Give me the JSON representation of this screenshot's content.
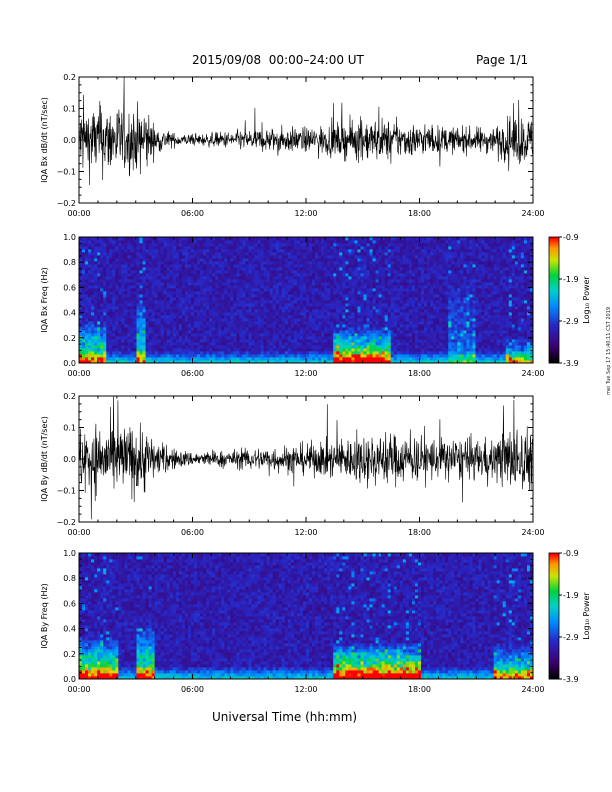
{
  "header": {
    "title": "2015/09/08  00:00–24:00 UT",
    "page_label": "Page 1/1"
  },
  "x_axis_title": "Universal Time (hh:mm)",
  "side_stamp": "mei Tue Sep 17 15:40:11 CST 2019",
  "colorbar": {
    "label": "Log₁₀ Power",
    "ticks": [
      "-0.9",
      "-1.9",
      "-2.9",
      "-3.9"
    ]
  },
  "chart_data": [
    {
      "type": "line",
      "title": "",
      "ylabel": "IQA Bx dB/dt (nT/sec)",
      "xlabel": "",
      "xlim": [
        "00:00",
        "24:00"
      ],
      "ylim": [
        -0.2,
        0.2
      ],
      "x_ticks": [
        "00:00",
        "06:00",
        "12:00",
        "18:00",
        "24:00"
      ],
      "y_ticks": [
        "0.2",
        "0.1",
        "0.0",
        "−0.1",
        "−0.2"
      ],
      "amplitude_envelope": {
        "x_hours": [
          0,
          1,
          2,
          3,
          3.5,
          4,
          5,
          6,
          8,
          10,
          12,
          14,
          15,
          16,
          17,
          18,
          20,
          21,
          22,
          23,
          24
        ],
        "amplitude": [
          0.2,
          0.2,
          0.2,
          0.18,
          0.2,
          0.08,
          0.04,
          0.03,
          0.05,
          0.07,
          0.07,
          0.1,
          0.12,
          0.12,
          0.1,
          0.09,
          0.07,
          0.07,
          0.08,
          0.15,
          0.12
        ]
      }
    },
    {
      "type": "heatmap",
      "title": "",
      "ylabel": "IQA Bx Freq (Hz)",
      "xlabel": "",
      "xlim": [
        "00:00",
        "24:00"
      ],
      "ylim": [
        0.0,
        1.0
      ],
      "x_ticks": [
        "00:00",
        "06:00",
        "12:00",
        "18:00",
        "24:00"
      ],
      "y_ticks": [
        "1.0",
        "0.8",
        "0.6",
        "0.4",
        "0.2",
        "0.0"
      ],
      "zlim": [
        -3.9,
        -0.9
      ],
      "zlabel": "Log₁₀ Power",
      "activity": [
        {
          "hours": [
            0,
            1.5
          ],
          "max_freq": 0.35,
          "strength": 0.6
        },
        {
          "hours": [
            3.0,
            3.5
          ],
          "max_freq": 0.5,
          "strength": 0.5
        },
        {
          "hours": [
            13.5,
            16.5
          ],
          "max_freq": 0.3,
          "strength": 0.7
        },
        {
          "hours": [
            19.5,
            21.0
          ],
          "max_freq": 0.7,
          "strength": 0.2
        },
        {
          "hours": [
            22.5,
            24.0
          ],
          "max_freq": 0.2,
          "strength": 0.4
        }
      ]
    },
    {
      "type": "line",
      "title": "",
      "ylabel": "IQA By dB/dt (nT/sec)",
      "xlabel": "",
      "xlim": [
        "00:00",
        "24:00"
      ],
      "ylim": [
        -0.2,
        0.2
      ],
      "x_ticks": [
        "00:00",
        "06:00",
        "12:00",
        "18:00",
        "24:00"
      ],
      "y_ticks": [
        "0.2",
        "0.1",
        "0.0",
        "−0.1",
        "−0.2"
      ],
      "amplitude_envelope": {
        "x_hours": [
          0,
          1,
          2,
          3,
          3.5,
          4,
          5,
          6,
          8,
          10,
          12,
          13,
          14,
          15,
          16,
          17,
          18,
          20,
          21,
          22,
          23,
          24
        ],
        "amplitude": [
          0.2,
          0.2,
          0.2,
          0.2,
          0.2,
          0.1,
          0.06,
          0.04,
          0.05,
          0.07,
          0.09,
          0.1,
          0.12,
          0.14,
          0.15,
          0.14,
          0.13,
          0.12,
          0.11,
          0.12,
          0.2,
          0.17
        ]
      }
    },
    {
      "type": "heatmap",
      "title": "",
      "ylabel": "IQA By Freq (Hz)",
      "xlabel": "",
      "xlim": [
        "00:00",
        "24:00"
      ],
      "ylim": [
        0.0,
        1.0
      ],
      "x_ticks": [
        "00:00",
        "06:00",
        "12:00",
        "18:00",
        "24:00"
      ],
      "y_ticks": [
        "1.0",
        "0.8",
        "0.6",
        "0.4",
        "0.2",
        "0.0"
      ],
      "zlim": [
        -3.9,
        -0.9
      ],
      "zlabel": "Log₁₀ Power",
      "activity": [
        {
          "hours": [
            0,
            2.0
          ],
          "max_freq": 0.35,
          "strength": 0.7
        },
        {
          "hours": [
            3.0,
            4.0
          ],
          "max_freq": 0.45,
          "strength": 0.6
        },
        {
          "hours": [
            13.5,
            18.0
          ],
          "max_freq": 0.3,
          "strength": 0.8
        },
        {
          "hours": [
            22.0,
            24.0
          ],
          "max_freq": 0.3,
          "strength": 0.5
        }
      ]
    }
  ]
}
